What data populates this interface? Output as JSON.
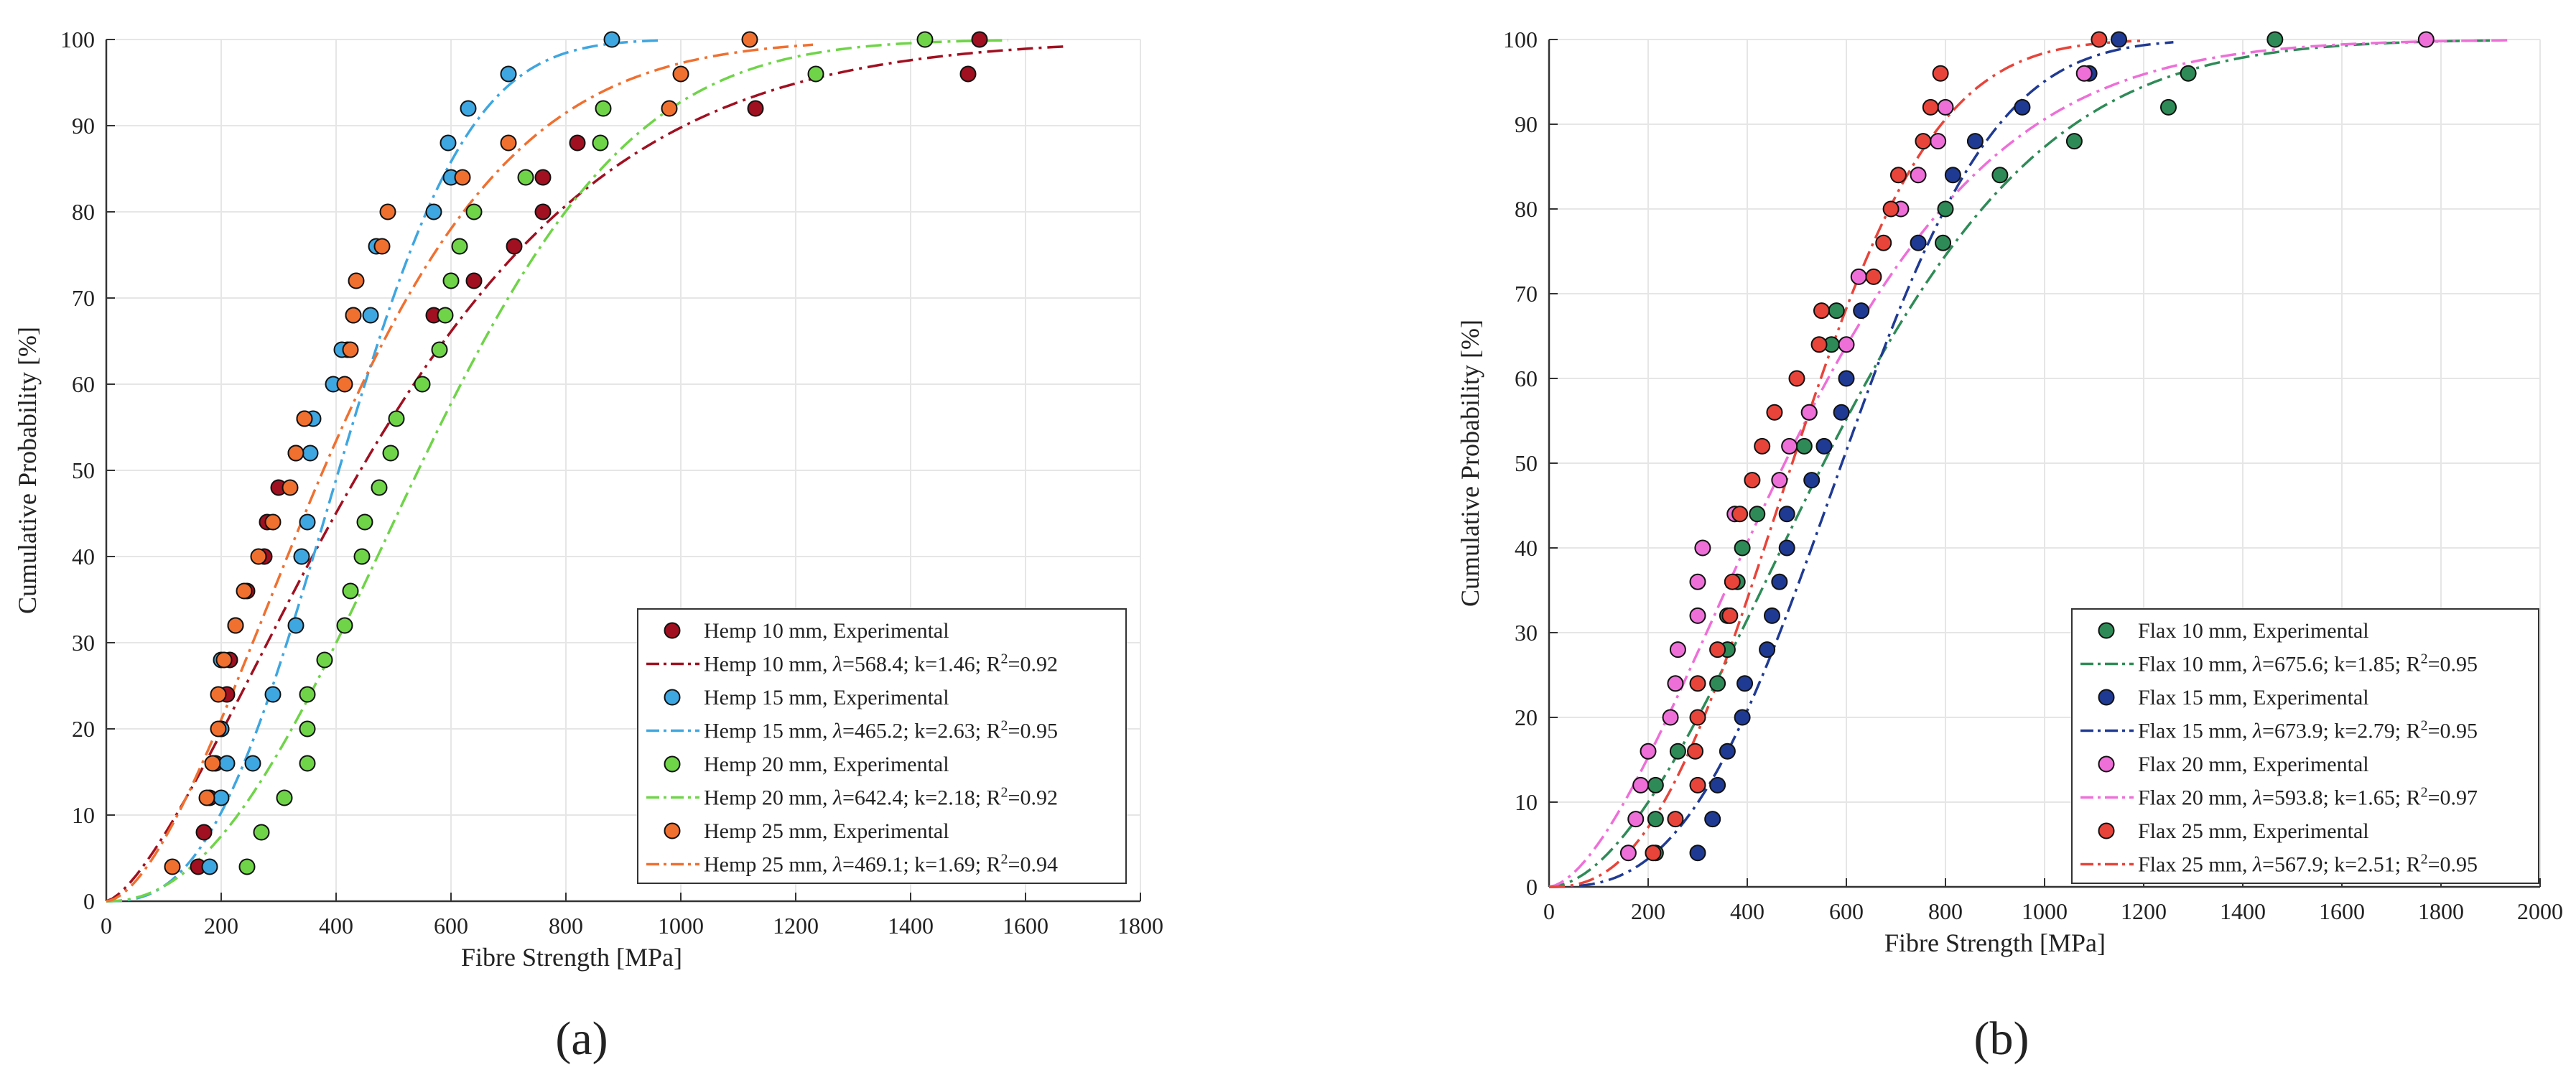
{
  "colors": {
    "hemp10": "#a01020",
    "hemp15": "#3ea6e0",
    "hemp20": "#6fd448",
    "hemp25": "#f07030",
    "flax10": "#2e8b57",
    "flax15": "#1f3a93",
    "flax20": "#ee6fd8",
    "flax25": "#e8443a"
  },
  "chart_data": [
    {
      "type": "scatter",
      "panel_label": "(a)",
      "xlabel": "Fibre Strength [MPa]",
      "ylabel": "Cumulative Probability [%]",
      "xlim": [
        0,
        1800
      ],
      "ylim": [
        0,
        100
      ],
      "xticks": [
        0,
        200,
        400,
        600,
        800,
        1000,
        1200,
        1400,
        1600,
        1800
      ],
      "yticks": [
        0,
        10,
        20,
        30,
        40,
        50,
        60,
        70,
        80,
        90,
        100
      ],
      "grid": true,
      "legend_position": "bottom-right",
      "series": [
        {
          "name": "Hemp 10 mm",
          "color_key": "hemp10",
          "exp_label": "Hemp 10 mm, Experimental",
          "fit_label_prefix": "Hemp 10 mm, ",
          "lambda": 568.4,
          "k": 1.46,
          "r2": 0.92,
          "fit_max": 1670,
          "points": [
            [
              160,
              4
            ],
            [
              170,
              8
            ],
            [
              180,
              12
            ],
            [
              190,
              16
            ],
            [
              200,
              20
            ],
            [
              210,
              24
            ],
            [
              215,
              28
            ],
            [
              225,
              32
            ],
            [
              245,
              36
            ],
            [
              275,
              40
            ],
            [
              280,
              44
            ],
            [
              300,
              48
            ],
            [
              330,
              52
            ],
            [
              345,
              56
            ],
            [
              420,
              64
            ],
            [
              430,
              68
            ],
            [
              570,
              68
            ],
            [
              640,
              72
            ],
            [
              710,
              76
            ],
            [
              760,
              80
            ],
            [
              760,
              84
            ],
            [
              820,
              88
            ],
            [
              1130,
              92
            ],
            [
              1500,
              96
            ],
            [
              1520,
              100
            ]
          ]
        },
        {
          "name": "Hemp 15 mm",
          "color_key": "hemp15",
          "exp_label": "Hemp 15 mm, Experimental",
          "fit_label_prefix": "Hemp 15 mm, ",
          "lambda": 465.2,
          "k": 2.63,
          "r2": 0.95,
          "fit_max": 960,
          "points": [
            [
              180,
              4
            ],
            [
              200,
              12
            ],
            [
              210,
              16
            ],
            [
              255,
              16
            ],
            [
              200,
              20
            ],
            [
              200,
              28
            ],
            [
              290,
              24
            ],
            [
              330,
              32
            ],
            [
              340,
              40
            ],
            [
              350,
              44
            ],
            [
              355,
              52
            ],
            [
              360,
              56
            ],
            [
              395,
              60
            ],
            [
              410,
              64
            ],
            [
              460,
              68
            ],
            [
              470,
              76
            ],
            [
              570,
              80
            ],
            [
              600,
              84
            ],
            [
              595,
              88
            ],
            [
              630,
              92
            ],
            [
              700,
              96
            ],
            [
              880,
              100
            ]
          ]
        },
        {
          "name": "Hemp 20 mm",
          "color_key": "hemp20",
          "exp_label": "Hemp 20 mm, Experimental",
          "fit_label_prefix": "Hemp 20 mm, ",
          "lambda": 642.4,
          "k": 2.18,
          "r2": 0.92,
          "fit_max": 1570,
          "points": [
            [
              245,
              4
            ],
            [
              270,
              8
            ],
            [
              310,
              12
            ],
            [
              350,
              16
            ],
            [
              350,
              20
            ],
            [
              350,
              24
            ],
            [
              380,
              28
            ],
            [
              415,
              32
            ],
            [
              425,
              36
            ],
            [
              445,
              40
            ],
            [
              450,
              44
            ],
            [
              475,
              48
            ],
            [
              495,
              52
            ],
            [
              505,
              56
            ],
            [
              550,
              60
            ],
            [
              580,
              64
            ],
            [
              590,
              68
            ],
            [
              600,
              72
            ],
            [
              615,
              76
            ],
            [
              640,
              80
            ],
            [
              730,
              84
            ],
            [
              860,
              88
            ],
            [
              865,
              92
            ],
            [
              1235,
              96
            ],
            [
              1425,
              100
            ]
          ]
        },
        {
          "name": "Hemp 25 mm",
          "color_key": "hemp25",
          "exp_label": "Hemp 25 mm, Experimental",
          "fit_label_prefix": "Hemp 25 mm, ",
          "lambda": 469.1,
          "k": 1.69,
          "r2": 0.94,
          "fit_max": 1230,
          "points": [
            [
              115,
              4
            ],
            [
              175,
              12
            ],
            [
              185,
              16
            ],
            [
              195,
              20
            ],
            [
              195,
              24
            ],
            [
              205,
              28
            ],
            [
              225,
              32
            ],
            [
              240,
              36
            ],
            [
              265,
              40
            ],
            [
              290,
              44
            ],
            [
              320,
              48
            ],
            [
              330,
              52
            ],
            [
              345,
              56
            ],
            [
              415,
              60
            ],
            [
              425,
              64
            ],
            [
              430,
              68
            ],
            [
              435,
              72
            ],
            [
              490,
              80
            ],
            [
              480,
              76
            ],
            [
              620,
              84
            ],
            [
              700,
              88
            ],
            [
              980,
              92
            ],
            [
              1000,
              96
            ],
            [
              1120,
              100
            ]
          ]
        }
      ],
      "panel_name": "hemp"
    },
    {
      "type": "scatter",
      "panel_label": "(b)",
      "xlabel": "Fibre Strength [MPa]",
      "ylabel": "Cumulative Probability [%]",
      "xlim": [
        0,
        2000
      ],
      "ylim": [
        0,
        100
      ],
      "xticks": [
        0,
        200,
        400,
        600,
        800,
        1000,
        1200,
        1400,
        1600,
        1800,
        2000
      ],
      "yticks": [
        0,
        10,
        20,
        30,
        40,
        50,
        60,
        70,
        80,
        90,
        100
      ],
      "grid": true,
      "legend_position": "bottom-right",
      "series": [
        {
          "name": "Flax 10 mm",
          "color_key": "flax10",
          "exp_label": "Flax 10 mm, Experimental",
          "fit_label_prefix": "Flax 10 mm, ",
          "lambda": 675.6,
          "k": 1.85,
          "r2": 0.95,
          "fit_max": 1900,
          "points": [
            [
              215,
              4
            ],
            [
              215,
              8
            ],
            [
              215,
              12
            ],
            [
              260,
              16
            ],
            [
              340,
              24
            ],
            [
              360,
              28
            ],
            [
              360,
              32
            ],
            [
              380,
              36
            ],
            [
              390,
              40
            ],
            [
              420,
              44
            ],
            [
              515,
              52
            ],
            [
              525,
              56
            ],
            [
              570,
              64
            ],
            [
              580,
              68
            ],
            [
              795,
              76
            ],
            [
              800,
              80
            ],
            [
              910,
              84
            ],
            [
              1060,
              88
            ],
            [
              1250,
              92
            ],
            [
              1290,
              96
            ],
            [
              1465,
              100
            ]
          ]
        },
        {
          "name": "Flax 15 mm",
          "color_key": "flax15",
          "exp_label": "Flax 15 mm, Experimental",
          "fit_label_prefix": "Flax 15 mm, ",
          "lambda": 673.9,
          "k": 2.79,
          "r2": 0.95,
          "fit_max": 1260,
          "points": [
            [
              300,
              4
            ],
            [
              330,
              8
            ],
            [
              340,
              12
            ],
            [
              360,
              16
            ],
            [
              390,
              20
            ],
            [
              395,
              24
            ],
            [
              440,
              28
            ],
            [
              450,
              32
            ],
            [
              465,
              36
            ],
            [
              480,
              40
            ],
            [
              480,
              44
            ],
            [
              530,
              48
            ],
            [
              555,
              52
            ],
            [
              590,
              56
            ],
            [
              600,
              60
            ],
            [
              630,
              68
            ],
            [
              745,
              76
            ],
            [
              815,
              84
            ],
            [
              860,
              88
            ],
            [
              955,
              92
            ],
            [
              1090,
              96
            ],
            [
              1150,
              100
            ]
          ]
        },
        {
          "name": "Flax 20 mm",
          "color_key": "flax20",
          "exp_label": "Flax 20 mm, Experimental",
          "fit_label_prefix": "Flax 20 mm, ",
          "lambda": 593.8,
          "k": 1.65,
          "r2": 0.97,
          "fit_max": 1940,
          "points": [
            [
              160,
              4
            ],
            [
              175,
              8
            ],
            [
              185,
              12
            ],
            [
              200,
              16
            ],
            [
              245,
              20
            ],
            [
              255,
              24
            ],
            [
              260,
              28
            ],
            [
              300,
              32
            ],
            [
              300,
              36
            ],
            [
              310,
              40
            ],
            [
              375,
              44
            ],
            [
              465,
              48
            ],
            [
              485,
              52
            ],
            [
              525,
              56
            ],
            [
              600,
              64
            ],
            [
              625,
              72
            ],
            [
              710,
              80
            ],
            [
              745,
              84
            ],
            [
              785,
              88
            ],
            [
              800,
              92
            ],
            [
              1080,
              96
            ],
            [
              1770,
              100
            ]
          ]
        },
        {
          "name": "Flax 25 mm",
          "color_key": "flax25",
          "exp_label": "Flax 25 mm, Experimental",
          "fit_label_prefix": "Flax 25 mm, ",
          "lambda": 567.9,
          "k": 2.51,
          "r2": 0.95,
          "fit_max": 1200,
          "points": [
            [
              210,
              4
            ],
            [
              255,
              8
            ],
            [
              300,
              12
            ],
            [
              295,
              16
            ],
            [
              300,
              20
            ],
            [
              300,
              24
            ],
            [
              340,
              28
            ],
            [
              365,
              32
            ],
            [
              370,
              36
            ],
            [
              385,
              44
            ],
            [
              410,
              48
            ],
            [
              430,
              52
            ],
            [
              455,
              56
            ],
            [
              500,
              60
            ],
            [
              545,
              64
            ],
            [
              550,
              68
            ],
            [
              655,
              72
            ],
            [
              675,
              76
            ],
            [
              690,
              80
            ],
            [
              705,
              84
            ],
            [
              755,
              88
            ],
            [
              770,
              92
            ],
            [
              790,
              96
            ],
            [
              1110,
              100
            ]
          ]
        }
      ],
      "panel_name": "flax"
    }
  ]
}
